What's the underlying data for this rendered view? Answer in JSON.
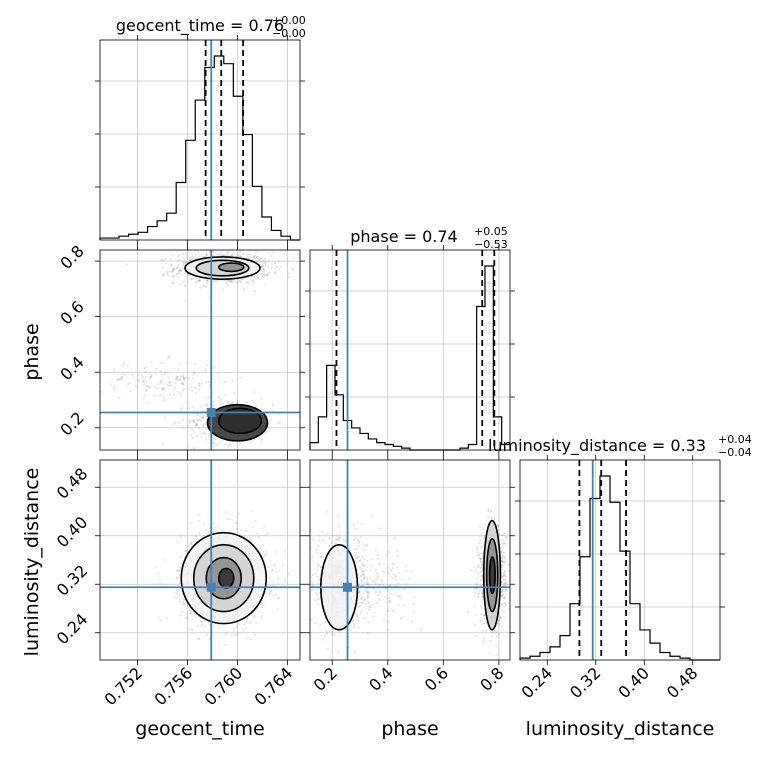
{
  "chart_data": {
    "type": "corner",
    "parameters": [
      "geocent_time",
      "phase",
      "luminosity_distance"
    ],
    "colors": {
      "truth": "#4682b4",
      "hist": "#000000",
      "scatter": "#777777",
      "grid": "#c8c8c8"
    },
    "grid": true,
    "titles": [
      {
        "name": "geocent_time",
        "value": "0.76",
        "plus": "+0.00",
        "minus": "−0.00"
      },
      {
        "name": "phase",
        "value": "0.74",
        "plus": "+0.05",
        "minus": "−0.53"
      },
      {
        "name": "luminosity_distance",
        "value": "0.33",
        "plus": "+0.04",
        "minus": "−0.04"
      }
    ],
    "axis_labels": {
      "x": [
        "geocent_time",
        "phase",
        "luminosity_distance"
      ],
      "y": [
        "phase",
        "luminosity_distance"
      ]
    },
    "ranges": [
      [
        0.749,
        0.765
      ],
      [
        0.12,
        0.84
      ],
      [
        0.195,
        0.525
      ]
    ],
    "ticks": [
      {
        "values": [
          0.752,
          0.756,
          0.76,
          0.764
        ],
        "labels": [
          "0.752",
          "0.756",
          "0.760",
          "0.764"
        ]
      },
      {
        "values": [
          0.2,
          0.4,
          0.6,
          0.8
        ],
        "labels": [
          "0.2",
          "0.4",
          "0.6",
          "0.8"
        ]
      },
      {
        "values": [
          0.24,
          0.32,
          0.4,
          0.48
        ],
        "labels": [
          "0.24",
          "0.32",
          "0.40",
          "0.48"
        ]
      }
    ],
    "truths": [
      0.7579,
      0.255,
      0.315
    ],
    "quantiles": [
      [
        0.75745,
        0.7587,
        0.76045
      ],
      [
        0.2153,
        0.74,
        0.7835
      ],
      [
        0.293,
        0.329,
        0.37
      ]
    ],
    "histograms": [
      {
        "edges": [
          0.749,
          0.765
        ],
        "counts": [
          1,
          1,
          2,
          3,
          4,
          7,
          10,
          14,
          30,
          52,
          73,
          90,
          96,
          92,
          75,
          55,
          28,
          12,
          5,
          2,
          0
        ]
      },
      {
        "edges": [
          0.12,
          0.84
        ],
        "counts": [
          4,
          18,
          46,
          30,
          16,
          12,
          9,
          6,
          4,
          3,
          2,
          1,
          0,
          0,
          0,
          0,
          0,
          0,
          1,
          3,
          78,
          100,
          18,
          3
        ]
      },
      {
        "edges": [
          0.195,
          0.525
        ],
        "counts": [
          1,
          2,
          4,
          7,
          13,
          30,
          55,
          86,
          98,
          84,
          58,
          30,
          16,
          9,
          4,
          2,
          1,
          0,
          0,
          0
        ]
      }
    ]
  }
}
